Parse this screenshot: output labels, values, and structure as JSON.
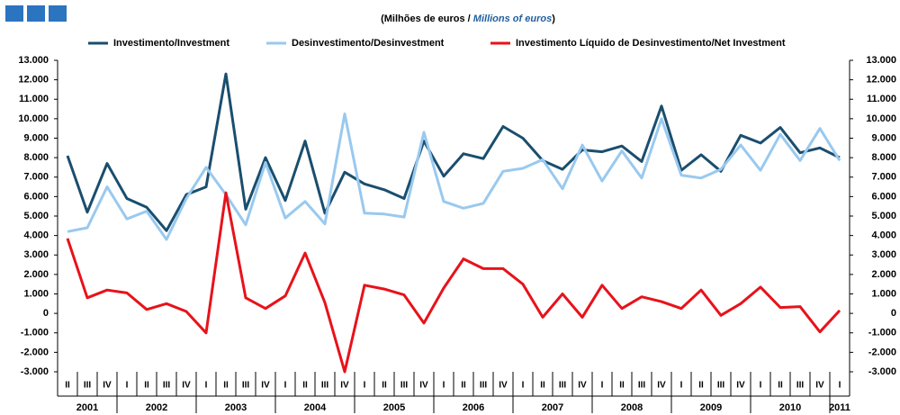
{
  "chart_data": {
    "type": "line",
    "title": [
      "(Milhões de euros / ",
      "Millions of euros",
      ")"
    ],
    "categories": [
      "II",
      "III",
      "IV",
      "I",
      "II",
      "III",
      "IV",
      "I",
      "II",
      "III",
      "IV",
      "I",
      "II",
      "III",
      "IV",
      "I",
      "II",
      "III",
      "IV",
      "I",
      "II",
      "III",
      "IV",
      "I",
      "II",
      "III",
      "IV",
      "I",
      "II",
      "III",
      "IV",
      "I",
      "II",
      "III",
      "IV",
      "I",
      "II",
      "III",
      "IV",
      "I"
    ],
    "years": [
      "2001",
      "2002",
      "2003",
      "2004",
      "2005",
      "2006",
      "2007",
      "2008",
      "2009",
      "2010",
      "2011"
    ],
    "series": [
      {
        "name": "Investimento/Investment",
        "color": "#1a4e6e",
        "values": [
          8100,
          5200,
          7700,
          5900,
          5450,
          4250,
          6100,
          6500,
          12300,
          5350,
          8000,
          5800,
          8850,
          5150,
          7250,
          6650,
          6350,
          5900,
          8850,
          7050,
          8200,
          7950,
          9600,
          9000,
          7850,
          7400,
          8400,
          8300,
          8600,
          7800,
          10650,
          7350,
          8150,
          7300,
          9150,
          8750,
          9550,
          8250,
          8500,
          8000
        ]
      },
      {
        "name": "Desinvestimento/Desinvestment",
        "color": "#99c9ef",
        "values": [
          4200,
          4400,
          6500,
          4850,
          5250,
          3800,
          5900,
          7500,
          6100,
          4550,
          7750,
          4900,
          5750,
          4600,
          10250,
          5150,
          5100,
          4950,
          9300,
          5750,
          5400,
          5650,
          7300,
          7450,
          7900,
          6400,
          8650,
          6800,
          8350,
          6950,
          10000,
          7100,
          6950,
          7400,
          8650,
          7350,
          9200,
          7850,
          9500,
          7850
        ]
      },
      {
        "name": "Investimento Líquido de Desinvestimento/Net Investment",
        "color": "#e8121a",
        "values": [
          3850,
          800,
          1200,
          1050,
          200,
          500,
          100,
          -1000,
          6200,
          800,
          250,
          900,
          3100,
          550,
          -3000,
          1450,
          1250,
          950,
          -500,
          1300,
          2800,
          2300,
          2300,
          1500,
          -200,
          1000,
          -200,
          1450,
          250,
          850,
          600,
          250,
          1200,
          -100,
          500,
          1350,
          300,
          350,
          -950,
          150
        ]
      }
    ],
    "ylim": [
      -3000,
      13000
    ],
    "yticks": [
      {
        "value": 13000,
        "label": "13.000"
      },
      {
        "value": 12000,
        "label": "12.000"
      },
      {
        "value": 11000,
        "label": "11.000"
      },
      {
        "value": 10000,
        "label": "10.000"
      },
      {
        "value": 9000,
        "label": "9.000"
      },
      {
        "value": 8000,
        "label": "8.000"
      },
      {
        "value": 7000,
        "label": "7.000"
      },
      {
        "value": 6000,
        "label": "6.000"
      },
      {
        "value": 5000,
        "label": "5.000"
      },
      {
        "value": 4000,
        "label": "4.000"
      },
      {
        "value": 3000,
        "label": "3.000"
      },
      {
        "value": 2000,
        "label": "2.000"
      },
      {
        "value": 1000,
        "label": "1.000"
      },
      0,
      {
        "value": -1000,
        "label": "-1.000"
      },
      {
        "value": -2000,
        "label": "-2.000"
      },
      {
        "value": -3000,
        "label": "-3.000"
      }
    ],
    "grid": false
  }
}
